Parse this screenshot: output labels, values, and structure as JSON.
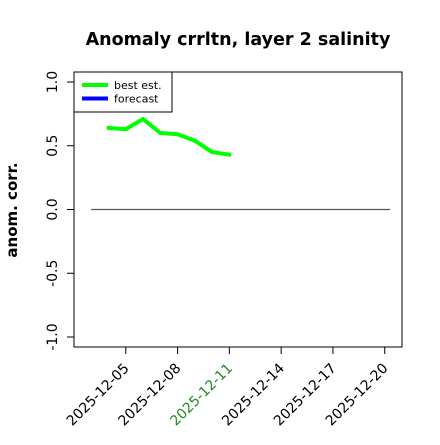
{
  "chart_data": {
    "type": "line",
    "title": "Anomaly crrltn, layer 2 salinity",
    "xlabel": "",
    "ylabel": "anom. corr.",
    "ylim": [
      -1.0,
      1.0
    ],
    "xlim": [
      "2025-12-02",
      "2025-12-21"
    ],
    "x_tick_labels": [
      "2025-12-05",
      "2025-12-08",
      "2025-12-11",
      "2025-12-14",
      "2025-12-17",
      "2025-12-20"
    ],
    "highlighted_x_tick": "2025-12-11",
    "highlight_color": "#228b22",
    "y_tick_labels": [
      "-1.0",
      "-0.5",
      "0.0",
      "0.5",
      "1.0"
    ],
    "grid": false,
    "legend_position": "top-left",
    "reference_line": {
      "y": 0.0,
      "from": "2025-12-03",
      "to": "2025-12-21",
      "color": "#555555"
    },
    "series": [
      {
        "name": "best est.",
        "color": "#00ff00",
        "x": [
          "2025-12-04",
          "2025-12-05",
          "2025-12-06",
          "2025-12-07",
          "2025-12-08",
          "2025-12-09",
          "2025-12-10",
          "2025-12-11"
        ],
        "values": [
          0.64,
          0.63,
          0.71,
          0.6,
          0.59,
          0.54,
          0.45,
          0.43
        ]
      },
      {
        "name": "forecast",
        "color": "#0000ff",
        "x": [],
        "values": []
      }
    ]
  }
}
